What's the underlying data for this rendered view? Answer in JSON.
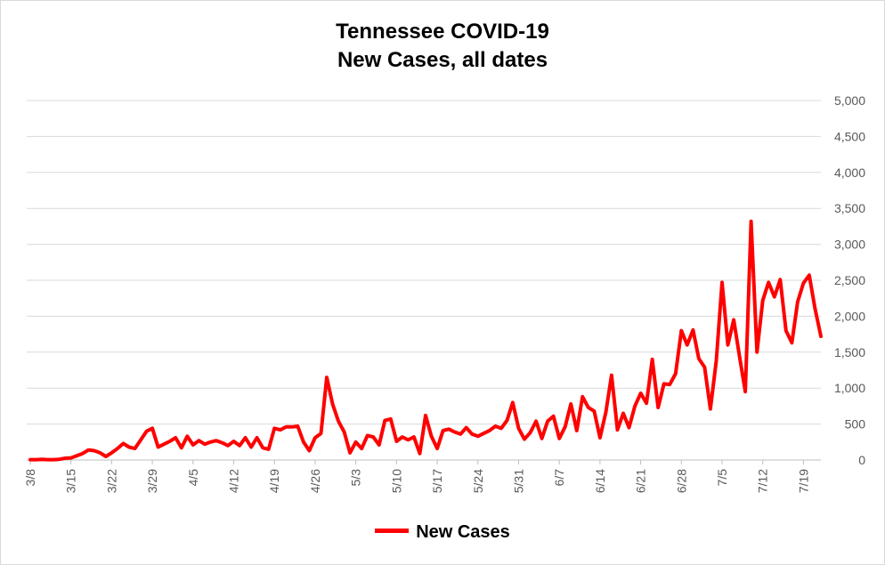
{
  "colors": {
    "series": "#ff0000",
    "grid": "#d9d9d9",
    "axis": "#bfbfbf",
    "text": "#595959"
  },
  "chart_data": {
    "type": "line",
    "title": [
      "Tennessee COVID-19",
      "New Cases, all dates"
    ],
    "xlabel": "",
    "ylabel": "",
    "y_axis_position": "right",
    "ylim": [
      0,
      5000
    ],
    "y_ticks": [
      "0",
      "500",
      "1,000",
      "1,500",
      "2,000",
      "2,500",
      "3,000",
      "3,500",
      "4,000",
      "4,500",
      "5,000"
    ],
    "x_ticks": [
      "3/8",
      "3/15",
      "3/22",
      "3/29",
      "4/5",
      "4/12",
      "4/19",
      "4/26",
      "5/3",
      "5/10",
      "5/17",
      "5/24",
      "5/31",
      "6/7",
      "6/14",
      "6/21",
      "6/28",
      "7/5",
      "7/12",
      "7/19"
    ],
    "grid": "horizontal",
    "legend": "bottom",
    "series": [
      {
        "name": "New Cases",
        "start_date": "3/8",
        "values": [
          5,
          5,
          10,
          5,
          5,
          10,
          25,
          30,
          60,
          90,
          140,
          130,
          100,
          50,
          100,
          160,
          230,
          180,
          160,
          280,
          400,
          440,
          180,
          220,
          260,
          310,
          170,
          330,
          210,
          270,
          220,
          250,
          270,
          240,
          200,
          260,
          200,
          310,
          180,
          310,
          170,
          150,
          440,
          420,
          460,
          460,
          470,
          250,
          130,
          310,
          370,
          1150,
          780,
          540,
          390,
          100,
          250,
          160,
          340,
          320,
          210,
          550,
          570,
          260,
          320,
          280,
          320,
          90,
          620,
          330,
          160,
          410,
          430,
          390,
          360,
          450,
          360,
          330,
          370,
          410,
          470,
          440,
          550,
          800,
          440,
          290,
          380,
          540,
          300,
          540,
          610,
          300,
          460,
          780,
          410,
          880,
          730,
          680,
          310,
          660,
          1180,
          420,
          650,
          450,
          750,
          930,
          790,
          1400,
          730,
          1060,
          1050,
          1200,
          1800,
          1600,
          1810,
          1410,
          1290,
          710,
          1380,
          2470,
          1600,
          1950,
          1440,
          950,
          3320,
          1500,
          2220,
          2470,
          2270,
          2510,
          1800,
          1630,
          2200,
          2460,
          2570,
          2100,
          1720
        ]
      }
    ]
  }
}
